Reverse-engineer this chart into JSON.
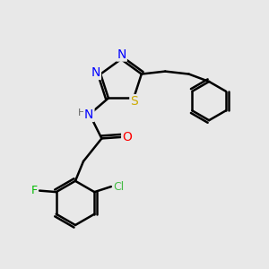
{
  "bg_color": "#e8e8e8",
  "bond_color": "#000000",
  "bond_width": 1.8,
  "atom_colors": {
    "N": "#0000ff",
    "S": "#ccaa00",
    "O": "#ff0000",
    "F": "#00bb00",
    "Cl": "#44bb44",
    "H": "#666666",
    "C": "#000000"
  },
  "font_size": 9,
  "title": ""
}
